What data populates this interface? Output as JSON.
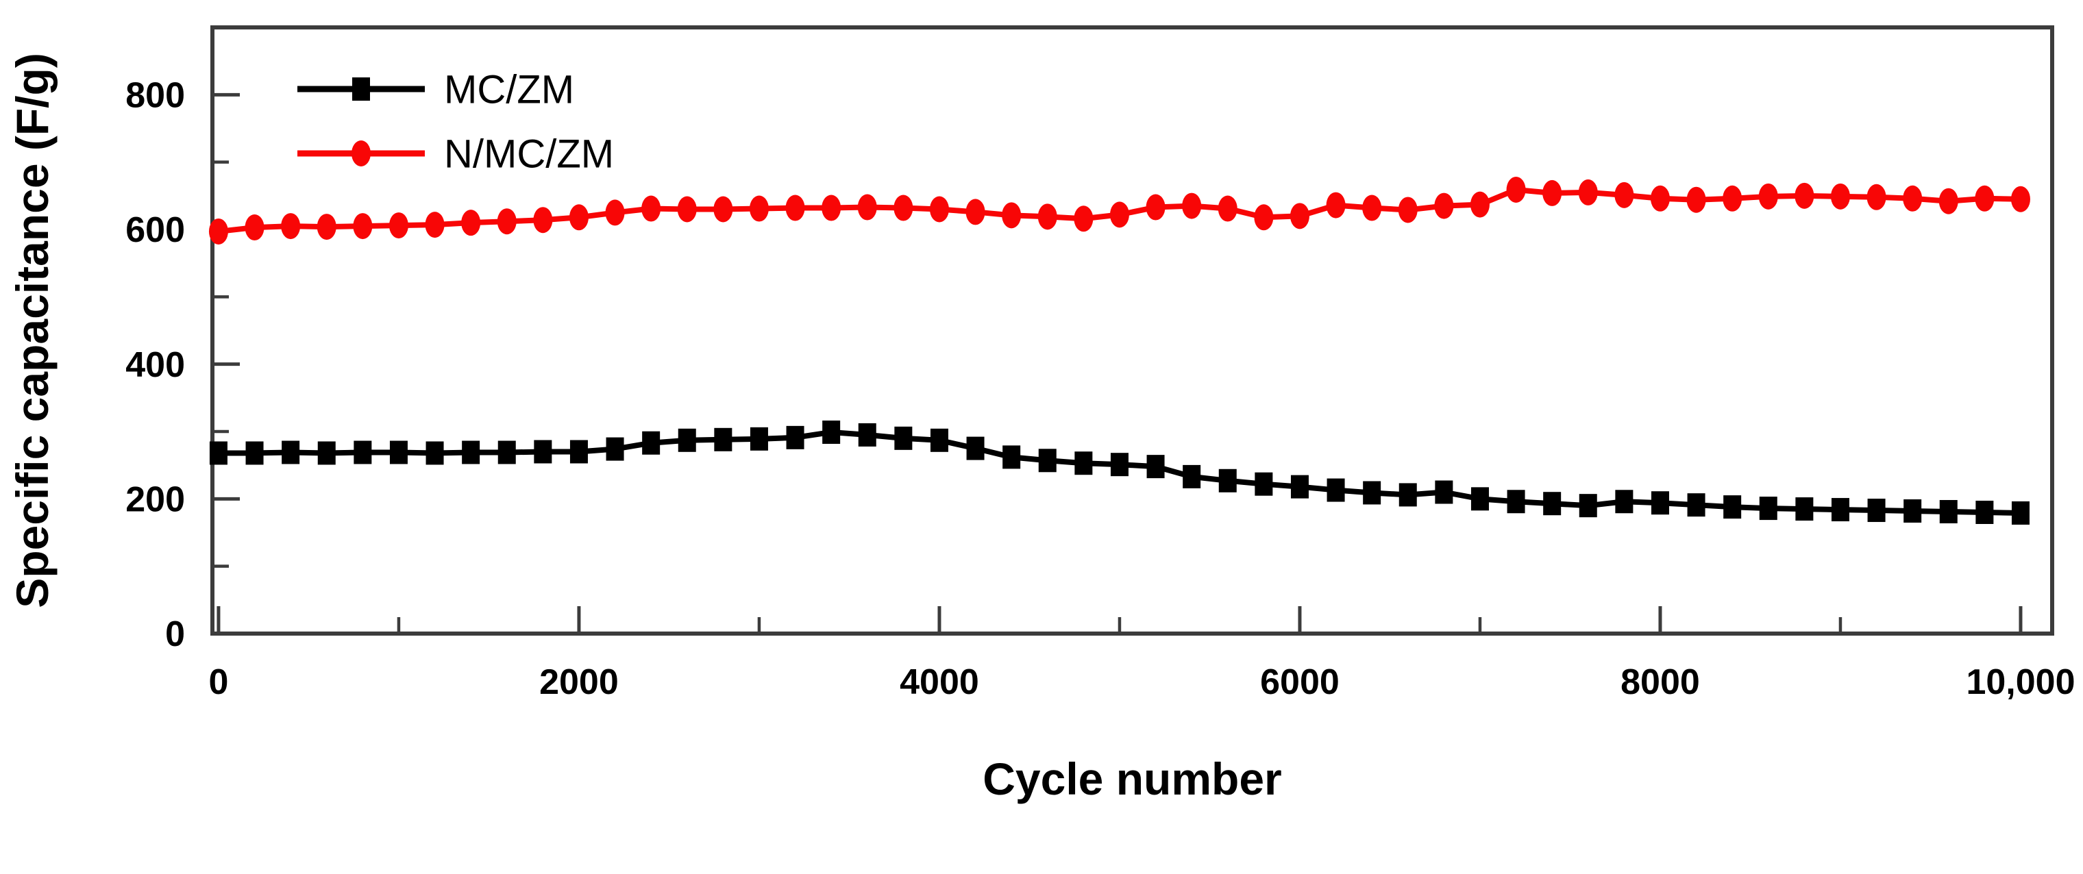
{
  "figure": {
    "background": "#ffffff",
    "axis_color": "#3c3c3c",
    "tick_label_color": "#000000"
  },
  "chart_data": {
    "type": "line",
    "title": "",
    "xlabel": "Cycle number",
    "ylabel": "Specific capacitance (F/g)",
    "xlim": [
      -34,
      10175
    ],
    "ylim": [
      0,
      900
    ],
    "grid": false,
    "legend_position": "top-left",
    "x_ticks": [
      0,
      2000,
      4000,
      6000,
      8000,
      10000
    ],
    "x_tick_labels": [
      "0",
      "2000",
      "4000",
      "6000",
      "8000",
      "10,000"
    ],
    "x_minor_ticks": [
      1000,
      3000,
      5000,
      7000,
      9000
    ],
    "y_ticks": [
      0,
      200,
      400,
      600,
      800
    ],
    "y_tick_labels": [
      "0",
      "200",
      "400",
      "600",
      "800"
    ],
    "y_minor_ticks": [
      100,
      300,
      500,
      700
    ],
    "x": [
      0,
      200,
      400,
      600,
      800,
      1000,
      1200,
      1400,
      1600,
      1800,
      2000,
      2200,
      2400,
      2600,
      2800,
      3000,
      3200,
      3400,
      3600,
      3800,
      4000,
      4200,
      4400,
      4600,
      4800,
      5000,
      5200,
      5400,
      5600,
      5800,
      6000,
      6200,
      6400,
      6600,
      6800,
      7000,
      7200,
      7400,
      7600,
      7800,
      8000,
      8200,
      8400,
      8600,
      8800,
      9000,
      9200,
      9400,
      9600,
      9800,
      10000
    ],
    "series": [
      {
        "name": "MC/ZM",
        "color": "#000000",
        "marker": "square",
        "values": [
          268,
          268,
          269,
          268,
          269,
          269,
          268,
          269,
          269,
          270,
          270,
          274,
          283,
          287,
          288,
          289,
          291,
          299,
          295,
          290,
          287,
          275,
          262,
          257,
          253,
          251,
          248,
          233,
          227,
          222,
          218,
          213,
          209,
          206,
          210,
          200,
          196,
          193,
          190,
          196,
          194,
          191,
          188,
          186,
          185,
          184,
          183,
          182,
          181,
          180,
          179
        ]
      },
      {
        "name": "N/MC/ZM",
        "color": "#f80606",
        "marker": "circle",
        "values": [
          597,
          603,
          605,
          604,
          605,
          606,
          607,
          610,
          612,
          614,
          618,
          625,
          631,
          630,
          630,
          631,
          632,
          632,
          633,
          632,
          630,
          626,
          621,
          619,
          616,
          622,
          633,
          635,
          631,
          618,
          620,
          636,
          632,
          629,
          635,
          637,
          659,
          654,
          655,
          651,
          646,
          644,
          646,
          649,
          650,
          649,
          648,
          646,
          642,
          646,
          645
        ]
      }
    ],
    "legend": {
      "entries": [
        {
          "label": "MC/ZM",
          "color": "#000000",
          "marker": "square"
        },
        {
          "label": "N/MC/ZM",
          "color": "#f80606",
          "marker": "circle"
        }
      ]
    }
  }
}
